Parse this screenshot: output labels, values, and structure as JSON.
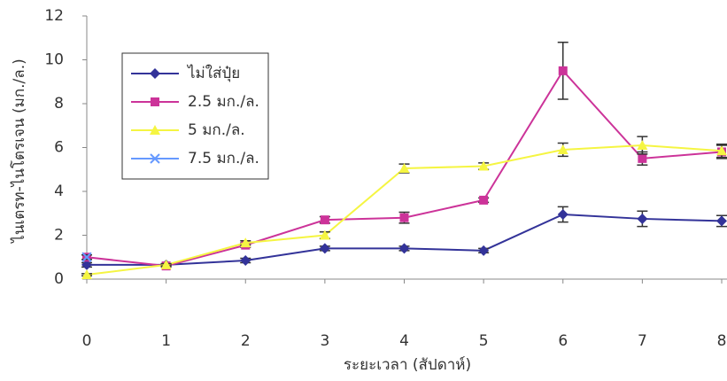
{
  "chart_data": {
    "type": "line",
    "x_label": "ระยะเวลา (สัปดาห์)",
    "y_label": "ไนเตรท-ไนโตรเจน (มก./ล.)",
    "x": [
      0,
      1,
      2,
      3,
      4,
      5,
      6,
      7,
      8
    ],
    "xlim": [
      0,
      8
    ],
    "xticks": [
      0,
      1,
      2,
      3,
      4,
      5,
      6,
      7,
      8
    ],
    "ylim": [
      0,
      12
    ],
    "yticks": [
      0,
      2,
      4,
      6,
      8,
      10,
      12
    ],
    "legend": "upper left",
    "series": [
      {
        "name": "ไม่ใส่ปุ๋ย",
        "color": "#333399",
        "marker": "diamond",
        "values": [
          0.65,
          0.65,
          0.85,
          1.4,
          1.4,
          1.3,
          2.95,
          2.75,
          2.65
        ],
        "errors": [
          0.1,
          0.05,
          0.1,
          0.1,
          0.1,
          0.1,
          0.35,
          0.35,
          0.25
        ]
      },
      {
        "name": "2.5  มก./ล.",
        "color": "#cc3399",
        "marker": "square",
        "values": [
          1.0,
          0.6,
          1.55,
          2.7,
          2.8,
          3.6,
          9.5,
          5.5,
          5.8
        ],
        "errors": [
          0.1,
          0.05,
          0.1,
          0.15,
          0.25,
          0.1,
          1.3,
          0.3,
          0.3
        ]
      },
      {
        "name": "5  มก./ล.",
        "color": "#f5f542",
        "marker": "triangle",
        "values": [
          0.2,
          0.65,
          1.65,
          2.0,
          5.05,
          5.15,
          5.9,
          6.1,
          5.85
        ],
        "errors": [
          0.05,
          0.05,
          0.1,
          0.15,
          0.2,
          0.15,
          0.3,
          0.4,
          0.3
        ]
      },
      {
        "name": "7.5  มก./ล.",
        "color": "#6699ff",
        "marker": "x",
        "values": [
          1.0,
          null,
          null,
          null,
          null,
          null,
          null,
          null,
          null
        ],
        "errors": [
          0.1,
          null,
          null,
          null,
          null,
          null,
          null,
          null,
          null
        ]
      }
    ]
  }
}
